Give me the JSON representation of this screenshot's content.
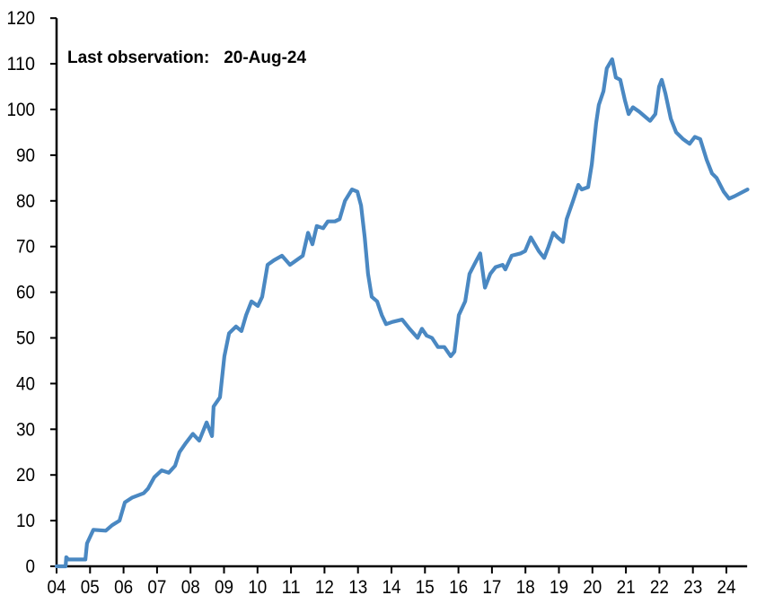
{
  "chart_data": {
    "type": "line",
    "title": "",
    "xlabel": "",
    "ylabel": "",
    "annotation": "Last observation:   20-Aug-24",
    "xlim": [
      2004,
      2024.62
    ],
    "ylim": [
      0,
      120
    ],
    "y_ticks": [
      0,
      10,
      20,
      30,
      40,
      50,
      60,
      70,
      80,
      90,
      100,
      110,
      120
    ],
    "x_ticks": [
      2004,
      2005,
      2006,
      2007,
      2008,
      2009,
      2010,
      2011,
      2012,
      2013,
      2014,
      2015,
      2016,
      2017,
      2018,
      2019,
      2020,
      2021,
      2022,
      2023,
      2024
    ],
    "x_tick_labels": [
      "04",
      "05",
      "06",
      "07",
      "08",
      "09",
      "10",
      "11",
      "12",
      "13",
      "14",
      "15",
      "16",
      "17",
      "18",
      "19",
      "20",
      "21",
      "22",
      "23",
      "24"
    ],
    "grid": false,
    "line_color": "#4a88c2",
    "series": [
      {
        "x": [
          2004.0,
          2004.27,
          2004.29,
          2004.35,
          2004.86,
          2004.91,
          2005.1,
          2005.47,
          2005.66,
          2005.88,
          2006.04,
          2006.25,
          2006.6,
          2006.73,
          2006.92,
          2007.14,
          2007.35,
          2007.54,
          2007.67,
          2007.86,
          2008.07,
          2008.26,
          2008.48,
          2008.64,
          2008.69,
          2008.88,
          2009.01,
          2009.15,
          2009.36,
          2009.52,
          2009.66,
          2009.82,
          2010.01,
          2010.14,
          2010.3,
          2010.49,
          2010.73,
          2010.97,
          2011.16,
          2011.35,
          2011.51,
          2011.64,
          2011.77,
          2011.96,
          2012.1,
          2012.31,
          2012.45,
          2012.61,
          2012.82,
          2012.98,
          2013.09,
          2013.2,
          2013.3,
          2013.41,
          2013.57,
          2013.71,
          2013.84,
          2014.03,
          2014.32,
          2014.54,
          2014.78,
          2014.91,
          2015.05,
          2015.21,
          2015.39,
          2015.58,
          2015.77,
          2015.88,
          2016.01,
          2016.2,
          2016.33,
          2016.47,
          2016.65,
          2016.79,
          2016.95,
          2017.11,
          2017.32,
          2017.4,
          2017.59,
          2017.86,
          2017.99,
          2018.16,
          2018.4,
          2018.56,
          2018.69,
          2018.83,
          2018.96,
          2019.12,
          2019.23,
          2019.42,
          2019.58,
          2019.68,
          2019.87,
          2019.98,
          2020.11,
          2020.19,
          2020.33,
          2020.43,
          2020.59,
          2020.7,
          2020.83,
          2020.97,
          2021.08,
          2021.21,
          2021.4,
          2021.56,
          2021.72,
          2021.88,
          2021.99,
          2022.07,
          2022.18,
          2022.34,
          2022.5,
          2022.71,
          2022.9,
          2023.06,
          2023.22,
          2023.41,
          2023.57,
          2023.71,
          2023.92,
          2024.08,
          2024.24,
          2024.63
        ],
        "values": [
          0,
          0,
          2,
          1.5,
          1.5,
          5,
          8,
          7.8,
          9,
          10,
          14,
          15,
          16,
          17,
          19.5,
          21,
          20.5,
          22,
          25,
          27,
          29,
          27.5,
          31.5,
          28.5,
          35,
          37,
          46,
          51,
          52.5,
          51.5,
          55,
          58,
          57,
          59,
          66,
          67,
          68,
          66,
          67,
          68,
          73,
          70.5,
          74.5,
          74,
          75.5,
          75.5,
          76,
          80,
          82.5,
          82,
          79,
          72,
          64,
          59,
          58,
          55,
          53,
          53.5,
          54,
          52,
          50,
          52,
          50.5,
          50,
          48,
          48,
          46,
          47,
          55,
          58,
          64,
          66,
          68.5,
          61,
          64,
          65.5,
          66,
          65,
          68,
          68.5,
          69,
          72,
          69,
          67.5,
          70,
          73,
          72,
          71,
          76,
          80,
          83.5,
          82.5,
          83,
          88,
          97,
          101,
          104,
          109,
          111,
          107,
          106.5,
          102,
          99,
          100.5,
          99.5,
          98.5,
          97.5,
          99,
          105,
          106.5,
          103.5,
          98,
          95,
          93.5,
          92.5,
          94,
          93.5,
          89,
          86,
          85,
          82,
          80.5,
          81,
          82.5
        ]
      }
    ]
  }
}
